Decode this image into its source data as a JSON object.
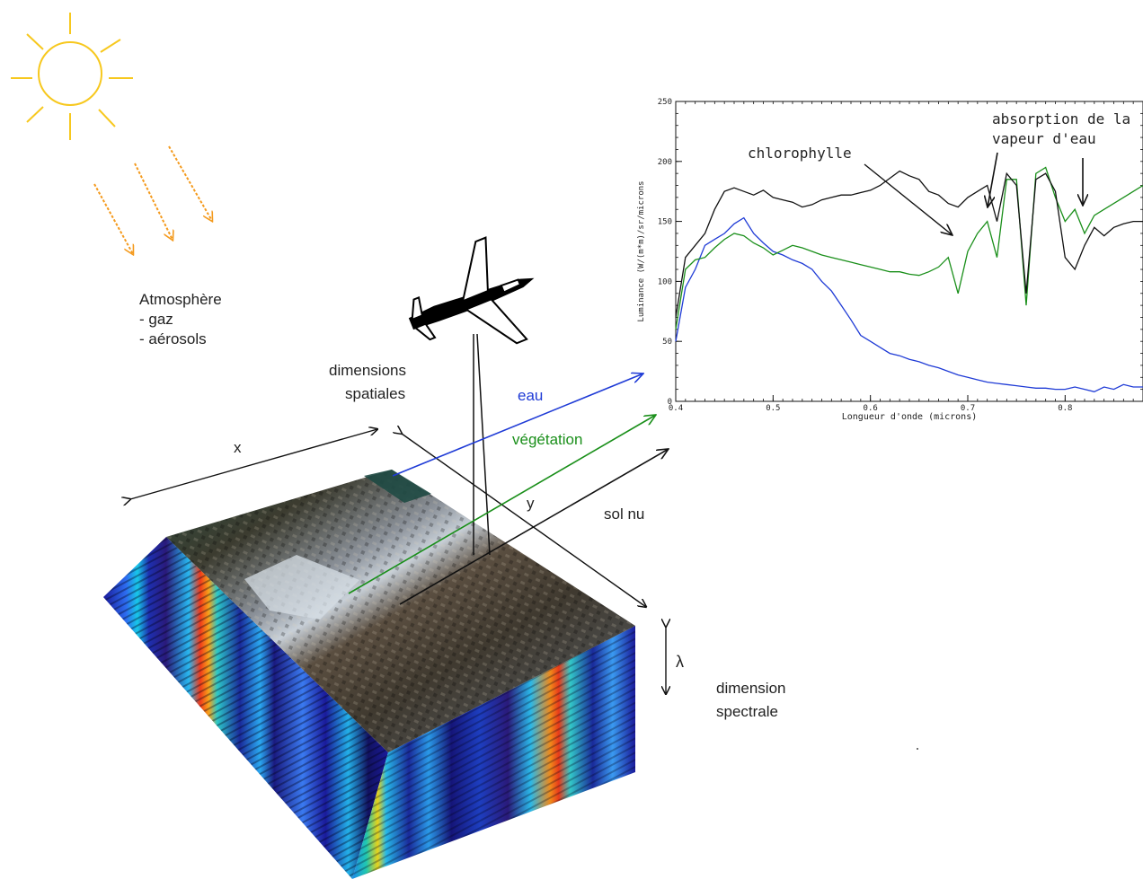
{
  "labels": {
    "atmosphere_title": "Atmosphère",
    "atmosphere_gas": "- gaz",
    "atmosphere_aerosols": "- aérosols",
    "spatial_dims_1": "dimensions",
    "spatial_dims_2": "spatiales",
    "axis_x": "x",
    "axis_y": "y",
    "lambda": "λ",
    "spectral_dim_1": "dimension",
    "spectral_dim_2": "spectrale",
    "eau": "eau",
    "vegetation": "végétation",
    "sol_nu": "sol nu",
    "chlorophylle": "chlorophylle",
    "absorption_1": "absorption de la",
    "absorption_2": "vapeur d'eau"
  },
  "colors": {
    "sun": "#f7c81e",
    "sun_rays": "#f49a1d",
    "eau": "#1f3bd6",
    "vegetation": "#1a8f1a",
    "sol_nu": "#111111"
  },
  "icons": {
    "sun": "sun-icon",
    "airplane": "airplane-icon"
  },
  "chart_data": {
    "type": "line",
    "xlabel": "Longueur d'onde (microns)",
    "ylabel": "Luminance (W/(m*m)/sr/microns",
    "xlim": [
      0.4,
      0.88
    ],
    "ylim": [
      0,
      250
    ],
    "x_ticks": [
      "0.4",
      "0.5",
      "0.6",
      "0.7",
      "0.8"
    ],
    "y_ticks": [
      "0",
      "50",
      "100",
      "150",
      "200",
      "250"
    ],
    "x": [
      0.4,
      0.41,
      0.42,
      0.43,
      0.44,
      0.45,
      0.46,
      0.47,
      0.48,
      0.49,
      0.5,
      0.51,
      0.52,
      0.53,
      0.54,
      0.55,
      0.56,
      0.57,
      0.58,
      0.59,
      0.6,
      0.61,
      0.62,
      0.63,
      0.64,
      0.65,
      0.66,
      0.67,
      0.68,
      0.69,
      0.7,
      0.71,
      0.72,
      0.73,
      0.74,
      0.75,
      0.76,
      0.77,
      0.78,
      0.79,
      0.8,
      0.81,
      0.82,
      0.83,
      0.84,
      0.85,
      0.86,
      0.87,
      0.88
    ],
    "series": [
      {
        "color": "#1f3bd6",
        "values": [
          50,
          95,
          110,
          130,
          135,
          140,
          148,
          153,
          140,
          132,
          125,
          122,
          118,
          115,
          110,
          100,
          92,
          80,
          68,
          55,
          50,
          45,
          40,
          38,
          35,
          33,
          30,
          28,
          25,
          22,
          20,
          18,
          16,
          15,
          14,
          13,
          12,
          11,
          11,
          10,
          10,
          12,
          10,
          8,
          12,
          10,
          14,
          12,
          12
        ]
      },
      {
        "color": "#1a8f1a",
        "values": [
          60,
          110,
          118,
          120,
          128,
          135,
          140,
          138,
          132,
          128,
          122,
          126,
          130,
          128,
          125,
          122,
          120,
          118,
          116,
          114,
          112,
          110,
          108,
          108,
          106,
          105,
          108,
          112,
          120,
          90,
          125,
          140,
          150,
          120,
          185,
          185,
          80,
          190,
          195,
          170,
          150,
          160,
          140,
          155,
          160,
          165,
          170,
          175,
          180
        ]
      },
      {
        "color": "#111111",
        "values": [
          70,
          120,
          130,
          140,
          160,
          175,
          178,
          175,
          172,
          176,
          170,
          168,
          166,
          162,
          164,
          168,
          170,
          172,
          172,
          174,
          176,
          180,
          186,
          192,
          188,
          185,
          175,
          172,
          165,
          162,
          170,
          175,
          180,
          150,
          190,
          180,
          90,
          185,
          190,
          175,
          120,
          110,
          130,
          145,
          138,
          145,
          148,
          150,
          150
        ]
      }
    ]
  }
}
